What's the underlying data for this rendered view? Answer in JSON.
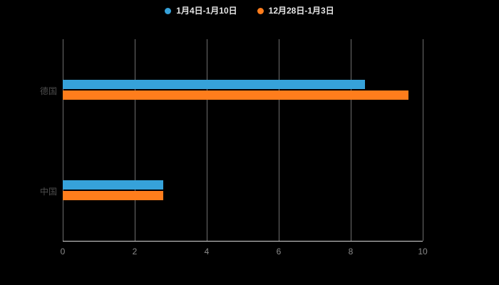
{
  "chart_data": {
    "type": "bar",
    "orientation": "horizontal",
    "title": "",
    "categories": [
      "德国",
      "中国"
    ],
    "series": [
      {
        "name": "1月4日-1月10日",
        "color": "#36a2da",
        "values": [
          8.4,
          2.8
        ]
      },
      {
        "name": "12月28日-1月3日",
        "color": "#ff7d1c",
        "values": [
          9.6,
          2.8
        ]
      }
    ],
    "xlim": [
      0,
      10
    ],
    "xticks": [
      0,
      2,
      4,
      6,
      8,
      10
    ],
    "grid": true,
    "legend_position": "top"
  },
  "colors": {
    "background": "#000000",
    "grid_line": "#6e6e6e",
    "axis_line": "#d9d9d9",
    "tick_label": "#8a8a8a",
    "category_label": "#4d4d4d",
    "legend_text": "#e6e6e6"
  }
}
